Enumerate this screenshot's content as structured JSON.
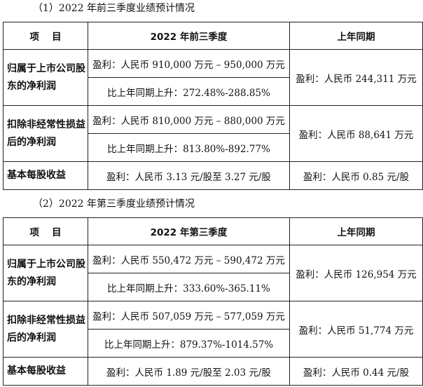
{
  "sections": [
    {
      "title": "（1）2022 年前三季度业绩预计情况",
      "headers": [
        "项　 目",
        "2022 年前三季度",
        "上年同期"
      ],
      "rows": [
        {
          "label": "归属于上市公司股东的净利润",
          "current_range": "盈利：人民币 910,000 万元 – 950,000 万元",
          "current_growth": "比上年同期上升：272.48%-288.85%",
          "prior": "盈利：人民币 244,311 万元"
        },
        {
          "label": "扣除非经常性损益后的净利润",
          "current_range": "盈利：人民币 810,000 万元 – 880,000 万元",
          "current_growth": "比上年同期上升：813.80%-892.77%",
          "prior": "盈利：人民币 88,641 万元"
        }
      ],
      "eps": {
        "label": "基本每股收益",
        "current": "盈利：人民币 3.13 元/股至 3.27 元/股",
        "prior": "盈利：人民币 0.85 元/股"
      }
    },
    {
      "title": "（2）2022 年第三季度业绩预计情况",
      "headers": [
        "项　 目",
        "2022 年第三季度",
        "上年同期"
      ],
      "rows": [
        {
          "label": "归属于上市公司股东的净利润",
          "current_range": "盈利：人民币 550,472 万元 – 590,472 万元",
          "current_growth": "比上年同期上升：333.60%-365.11%",
          "prior": "盈利：人民币 126,954 万元"
        },
        {
          "label": "扣除非经常性损益后的净利润",
          "current_range": "盈利：人民币 507,059 万元 – 577,059 万元",
          "current_growth": "比上年同期上升：879.37%-1014.57%",
          "prior": "盈利：人民币 51,774 万元"
        }
      ],
      "eps": {
        "label": "基本每股收益",
        "current": "盈利：人民币 1.89 元/股至 2.03 元/股",
        "prior": "盈利：人民币 0.44 元/股"
      }
    }
  ]
}
